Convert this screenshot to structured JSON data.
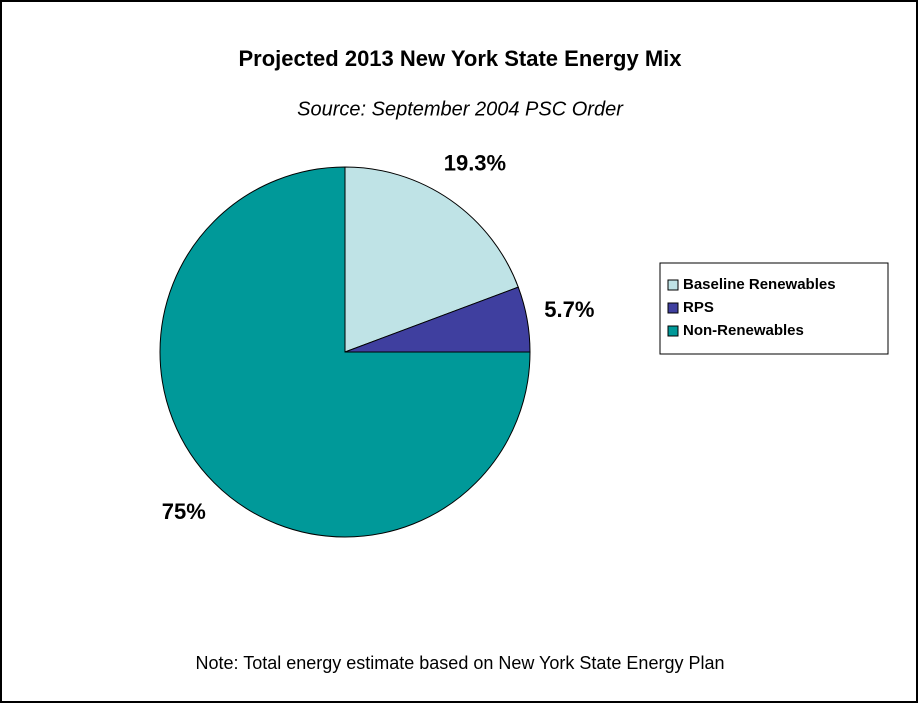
{
  "chart_data": {
    "type": "pie",
    "title": "Projected 2013 New York State Energy Mix",
    "subtitle": "Source: September 2004 PSC Order",
    "categories": [
      "Baseline Renewables",
      "RPS",
      "Non-Renewables"
    ],
    "values": [
      19.3,
      5.7,
      75
    ],
    "value_labels": [
      "19.3%",
      "5.7%",
      "75%"
    ],
    "colors": [
      "#bfe3e6",
      "#3f3f9f",
      "#009999"
    ],
    "legend": "right",
    "annotation": "Note: Total energy estimate based on New York State Energy Plan"
  }
}
